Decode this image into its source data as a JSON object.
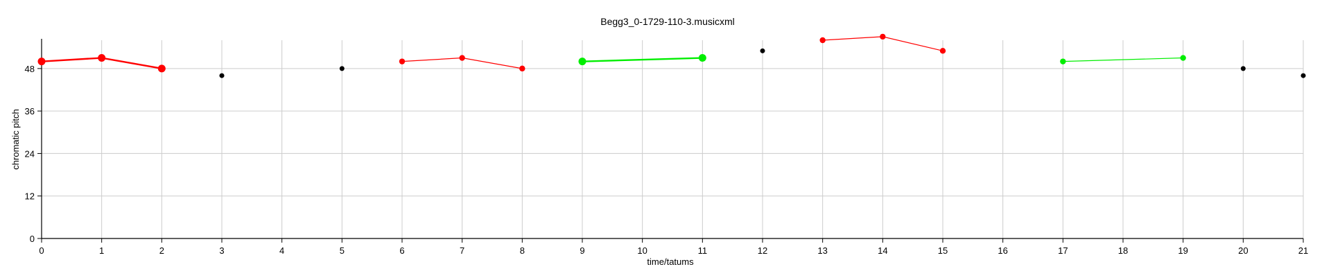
{
  "chart_data": {
    "type": "scatter",
    "title": "Begg3_0-1729-110-3.musicxml",
    "xlabel": "time/tatums",
    "ylabel": "chromatic pitch",
    "xlim": [
      0,
      21
    ],
    "ylim": [
      0,
      56
    ],
    "xticks": [
      0,
      1,
      2,
      3,
      4,
      5,
      6,
      7,
      8,
      9,
      10,
      11,
      12,
      13,
      14,
      15,
      16,
      17,
      18,
      19,
      20,
      21
    ],
    "yticks": [
      0,
      12,
      24,
      36,
      48
    ],
    "grid": true,
    "colors": {
      "red": "#ff0000",
      "green": "#00ee00",
      "black": "#000000"
    },
    "points": [
      {
        "x": 0,
        "y": 50,
        "color": "red",
        "size": "large"
      },
      {
        "x": 1,
        "y": 51,
        "color": "red",
        "size": "large"
      },
      {
        "x": 2,
        "y": 48,
        "color": "red",
        "size": "large"
      },
      {
        "x": 3,
        "y": 46,
        "color": "black",
        "size": "small"
      },
      {
        "x": 5,
        "y": 48,
        "color": "black",
        "size": "small"
      },
      {
        "x": 6,
        "y": 50,
        "color": "red",
        "size": "medium"
      },
      {
        "x": 7,
        "y": 51,
        "color": "red",
        "size": "medium"
      },
      {
        "x": 8,
        "y": 48,
        "color": "red",
        "size": "medium"
      },
      {
        "x": 9,
        "y": 50,
        "color": "green",
        "size": "large"
      },
      {
        "x": 11,
        "y": 51,
        "color": "green",
        "size": "large"
      },
      {
        "x": 12,
        "y": 53,
        "color": "black",
        "size": "small"
      },
      {
        "x": 13,
        "y": 56,
        "color": "red",
        "size": "medium"
      },
      {
        "x": 14,
        "y": 57,
        "color": "red",
        "size": "medium"
      },
      {
        "x": 15,
        "y": 53,
        "color": "red",
        "size": "medium"
      },
      {
        "x": 17,
        "y": 50,
        "color": "green",
        "size": "medium"
      },
      {
        "x": 19,
        "y": 51,
        "color": "green",
        "size": "medium"
      },
      {
        "x": 20,
        "y": 48,
        "color": "black",
        "size": "small"
      },
      {
        "x": 21,
        "y": 46,
        "color": "black",
        "size": "small"
      }
    ],
    "segments": [
      {
        "points": [
          [
            0,
            50
          ],
          [
            1,
            51
          ],
          [
            2,
            48
          ]
        ],
        "color": "red",
        "weight": "thick"
      },
      {
        "points": [
          [
            6,
            50
          ],
          [
            7,
            51
          ],
          [
            8,
            48
          ]
        ],
        "color": "red",
        "weight": "thin"
      },
      {
        "points": [
          [
            9,
            50
          ],
          [
            11,
            51
          ]
        ],
        "color": "green",
        "weight": "thick"
      },
      {
        "points": [
          [
            13,
            56
          ],
          [
            14,
            57
          ],
          [
            15,
            53
          ]
        ],
        "color": "red",
        "weight": "thin"
      },
      {
        "points": [
          [
            17,
            50
          ],
          [
            19,
            51
          ]
        ],
        "color": "green",
        "weight": "thin"
      }
    ]
  }
}
